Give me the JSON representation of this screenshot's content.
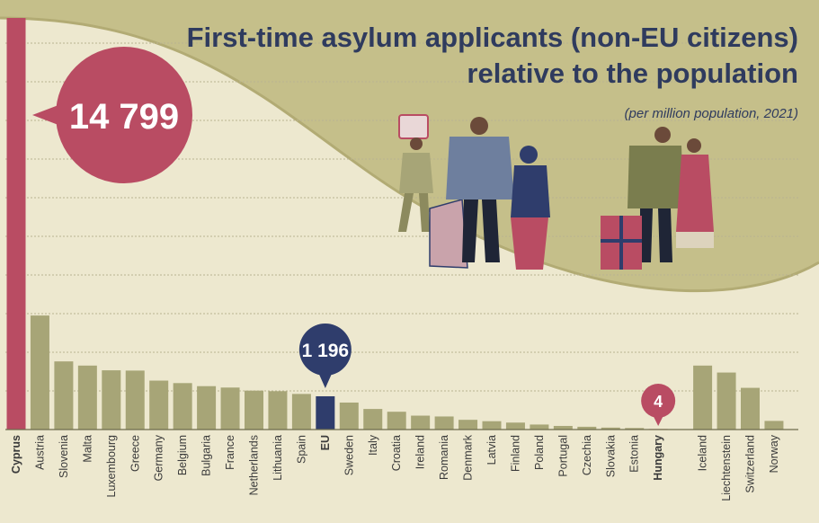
{
  "title_line1": "First-time asylum applicants (non-EU citizens)",
  "title_line2": "relative to the population",
  "subtitle": "(per million population, 2021)",
  "colors": {
    "background": "#ede8cf",
    "band": "#c5bf8a",
    "bar": "#a7a577",
    "highlight": "#b94c63",
    "eu": "#2f3d6c",
    "title": "#2f3b5e"
  },
  "chart_data": {
    "type": "bar",
    "title": "First-time asylum applicants (non-EU citizens) relative to the population",
    "subtitle": "(per million population, 2021)",
    "xlabel": "",
    "ylabel": "",
    "ylim": [
      0,
      14799
    ],
    "grid": true,
    "categories": [
      "Cyprus",
      "Austria",
      "Slovenia",
      "Malta",
      "Luxembourg",
      "Greece",
      "Germany",
      "Belgium",
      "Bulgaria",
      "France",
      "Netherlands",
      "Lithuania",
      "Spain",
      "EU",
      "Sweden",
      "Italy",
      "Croatia",
      "Ireland",
      "Romania",
      "Denmark",
      "Latvia",
      "Finland",
      "Poland",
      "Portugal",
      "Czechia",
      "Slovakia",
      "Estonia",
      "Hungary",
      "Iceland",
      "Liechtenstein",
      "Switzerland",
      "Norway"
    ],
    "values": [
      14799,
      4100,
      2450,
      2300,
      2130,
      2120,
      1760,
      1670,
      1560,
      1510,
      1400,
      1380,
      1280,
      1196,
      970,
      740,
      640,
      500,
      470,
      350,
      300,
      250,
      180,
      130,
      100,
      70,
      55,
      4,
      2300,
      2050,
      1500,
      310
    ],
    "highlighted": [
      "Cyprus",
      "EU",
      "Hungary"
    ],
    "annotations": [
      {
        "category": "Cyprus",
        "label": "14 799"
      },
      {
        "category": "EU",
        "label": "1 196"
      },
      {
        "category": "Hungary",
        "label": "4"
      }
    ]
  }
}
